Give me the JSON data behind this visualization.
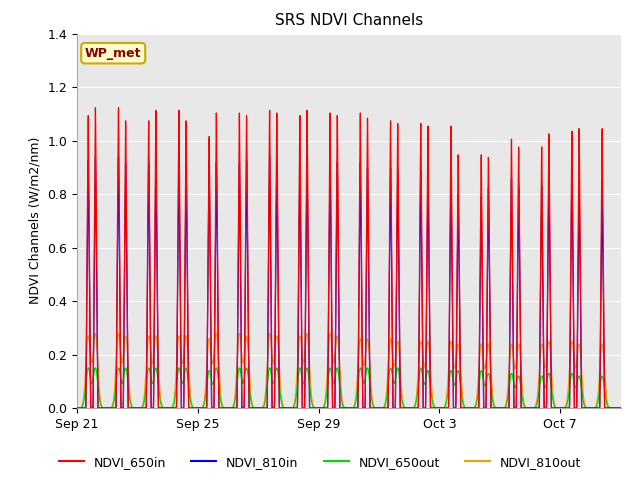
{
  "title": "SRS NDVI Channels",
  "ylabel": "NDVI Channels (W/m2/nm)",
  "ylim": [
    0.0,
    1.4
  ],
  "yticks": [
    0.0,
    0.2,
    0.4,
    0.6,
    0.8,
    1.0,
    1.2,
    1.4
  ],
  "fig_bg_color": "#ffffff",
  "plot_bg_color": "#e8e8e8",
  "grid_color": "#d0d0d0",
  "annotation_text": "WP_met",
  "annotation_bg": "#ffffcc",
  "annotation_border": "#ccaa00",
  "colors": {
    "NDVI_650in": "#ff0000",
    "NDVI_810in": "#0000ff",
    "NDVI_650out": "#00dd00",
    "NDVI_810out": "#ff9900"
  },
  "xtick_labels": [
    "Sep 21",
    "Sep 25",
    "Sep 29",
    "Oct 3",
    "Oct 7"
  ],
  "xtick_positions": [
    0,
    4,
    8,
    12,
    16
  ],
  "n_days": 18,
  "peak_650in": [
    1.12,
    1.15,
    1.1,
    1.14,
    1.04,
    1.13,
    1.14,
    1.12,
    1.13,
    1.13,
    1.1,
    1.09,
    1.08,
    0.97,
    1.03,
    1.0,
    1.06,
    1.07
  ],
  "peak_810in": [
    0.95,
    0.96,
    0.94,
    0.95,
    0.95,
    0.94,
    0.96,
    0.94,
    0.95,
    0.94,
    0.92,
    0.91,
    0.9,
    0.81,
    0.88,
    0.85,
    0.92,
    0.83
  ],
  "peak_650out": [
    0.15,
    0.15,
    0.15,
    0.15,
    0.14,
    0.15,
    0.15,
    0.15,
    0.15,
    0.15,
    0.15,
    0.15,
    0.14,
    0.14,
    0.13,
    0.12,
    0.13,
    0.12
  ],
  "peak_810out": [
    0.27,
    0.28,
    0.27,
    0.27,
    0.26,
    0.28,
    0.28,
    0.27,
    0.28,
    0.26,
    0.26,
    0.25,
    0.25,
    0.24,
    0.24,
    0.24,
    0.25,
    0.24
  ],
  "peak2_650in": [
    1.15,
    1.1,
    1.14,
    1.1,
    1.13,
    1.12,
    1.13,
    1.14,
    1.12,
    1.11,
    1.09,
    1.08,
    0.97,
    0.96,
    1.0,
    1.05,
    1.07,
    0.0
  ],
  "peak2_810in": [
    0.96,
    0.94,
    0.95,
    0.93,
    0.94,
    0.95,
    0.94,
    0.95,
    0.94,
    0.92,
    0.91,
    0.9,
    0.82,
    0.84,
    0.85,
    0.9,
    0.84,
    0.0
  ],
  "peak2_650out": [
    0.15,
    0.15,
    0.15,
    0.15,
    0.15,
    0.15,
    0.15,
    0.15,
    0.15,
    0.15,
    0.15,
    0.14,
    0.14,
    0.13,
    0.12,
    0.13,
    0.12,
    0.0
  ],
  "peak2_810out": [
    0.28,
    0.27,
    0.27,
    0.27,
    0.28,
    0.27,
    0.27,
    0.28,
    0.27,
    0.26,
    0.25,
    0.25,
    0.24,
    0.24,
    0.24,
    0.25,
    0.24,
    0.0
  ]
}
